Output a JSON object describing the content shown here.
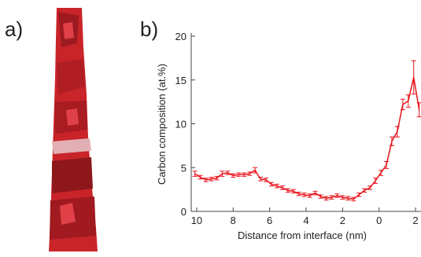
{
  "panel_a": {
    "label": "a)"
  },
  "chart_data": {
    "type": "line",
    "panel_label": "b)",
    "x_label": "Distance from interface (nm)",
    "y_label": "Carbon composition (at.%)",
    "color": "#e8141c",
    "x": [
      10.1,
      9.8,
      9.5,
      9.2,
      8.9,
      8.6,
      8.3,
      8.0,
      7.7,
      7.4,
      7.1,
      6.8,
      6.5,
      6.2,
      5.9,
      5.6,
      5.3,
      5.0,
      4.7,
      4.4,
      4.1,
      3.8,
      3.5,
      3.2,
      2.9,
      2.6,
      2.3,
      2.0,
      1.7,
      1.4,
      1.1,
      0.8,
      0.5,
      0.2,
      -0.1,
      -0.4,
      -0.7,
      -1.0,
      -1.3,
      -1.6,
      -1.9,
      -2.2
    ],
    "values": [
      4.3,
      3.9,
      3.6,
      3.7,
      3.8,
      4.3,
      4.4,
      4.1,
      4.2,
      4.2,
      4.3,
      4.7,
      3.7,
      3.6,
      3.1,
      2.9,
      2.7,
      2.4,
      2.3,
      2.0,
      1.9,
      1.8,
      2.1,
      1.7,
      1.5,
      1.6,
      1.8,
      1.6,
      1.5,
      1.4,
      1.9,
      2.4,
      2.7,
      3.5,
      4.4,
      5.3,
      8.0,
      9.1,
      12.2,
      12.6,
      15.3,
      11.6
    ],
    "errors": [
      0.3,
      0.2,
      0.2,
      0.2,
      0.2,
      0.3,
      0.2,
      0.2,
      0.2,
      0.2,
      0.2,
      0.3,
      0.2,
      0.2,
      0.2,
      0.2,
      0.2,
      0.2,
      0.2,
      0.2,
      0.2,
      0.2,
      0.2,
      0.2,
      0.2,
      0.2,
      0.2,
      0.2,
      0.2,
      0.2,
      0.2,
      0.2,
      0.2,
      0.3,
      0.3,
      0.4,
      0.5,
      0.6,
      0.6,
      0.7,
      1.9,
      0.8
    ],
    "xlim": [
      10.3,
      -2.3
    ],
    "xticks": [
      10,
      8,
      6,
      4,
      2,
      0,
      {
        "value": -2,
        "label": "2"
      }
    ],
    "ylim": [
      0,
      20
    ],
    "yticks": [
      0,
      5,
      10,
      15,
      20
    ]
  }
}
